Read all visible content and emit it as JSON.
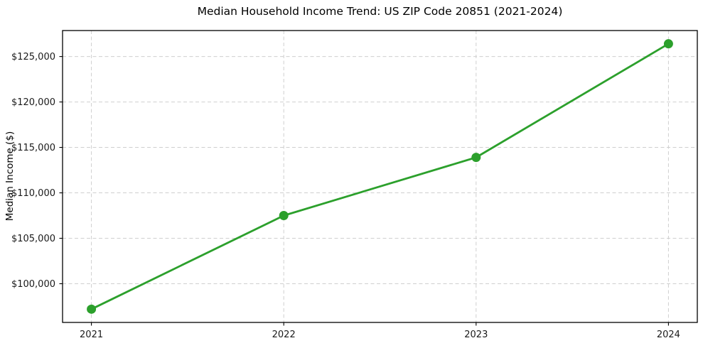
{
  "chart_data": {
    "type": "line",
    "title": "Median Household Income Trend: US ZIP Code 20851 (2021-2024)",
    "xlabel": "",
    "ylabel": "Median Income ($)",
    "x": [
      2021,
      2022,
      2023,
      2024
    ],
    "x_tick_labels": [
      "2021",
      "2022",
      "2023",
      "2024"
    ],
    "series": [
      {
        "name": "Median Household Income",
        "values": [
          97200,
          107500,
          113900,
          126400
        ]
      }
    ],
    "y_ticks": [
      100000,
      105000,
      110000,
      115000,
      120000,
      125000
    ],
    "y_tick_labels": [
      "$100,000",
      "$105,000",
      "$110,000",
      "$115,000",
      "$120,000",
      "$125,000"
    ],
    "xlim": [
      2020.85,
      2024.15
    ],
    "ylim": [
      95740,
      127860
    ],
    "grid": true,
    "grid_style": "dashed",
    "legend": false,
    "colors": {
      "line": "#2ca02c",
      "marker": "#2ca02c",
      "grid": "#cfcfcf",
      "spine": "#000000",
      "tick_label": "#1a1a1a",
      "background": "#ffffff"
    }
  }
}
